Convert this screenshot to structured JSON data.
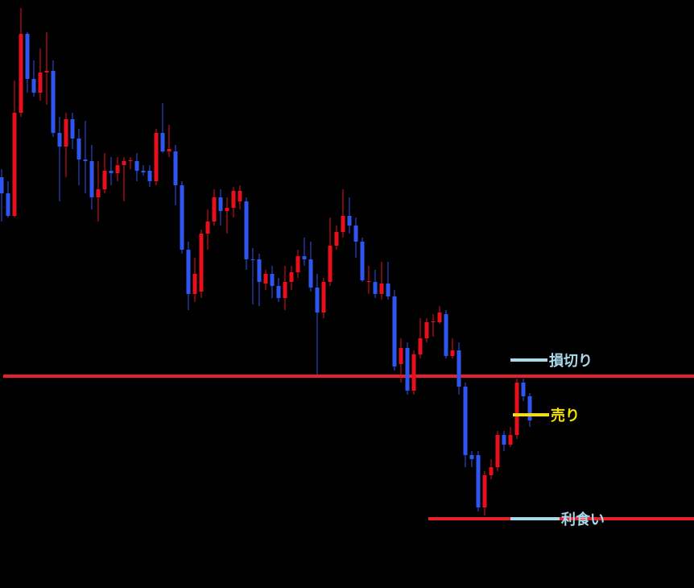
{
  "chart_data": {
    "type": "candlestick",
    "up_color": "#e8101c",
    "down_color": "#2f55f0",
    "ylim": [
      0,
      730
    ],
    "open": [
      510,
      490,
      462,
      590,
      688,
      632,
      615,
      640,
      642,
      565,
      548,
      582,
      558,
      532,
      530,
      485,
      495,
      518,
      515,
      525,
      530,
      530,
      518,
      518,
      505,
      565,
      542,
      542,
      500,
      420,
      365,
      368,
      440,
      455,
      485,
      468,
      472,
      480,
      480,
      408,
      408,
      378,
      390,
      375,
      360,
      380,
      392,
      412,
      408,
      373,
      342,
      380,
      425,
      442,
      462,
      450,
      430,
      380,
      380,
      365,
      378,
      362,
      278,
      298,
      245,
      290,
      310,
      330,
      330,
      340,
      288,
      295,
      250,
      165,
      165,
      100,
      140,
      150,
      190,
      178,
      190,
      255,
      238
    ],
    "high": [
      520,
      505,
      630,
      720,
      690,
      655,
      670,
      690,
      655,
      585,
      590,
      590,
      570,
      580,
      550,
      530,
      540,
      535,
      535,
      535,
      535,
      540,
      525,
      525,
      570,
      602,
      575,
      550,
      505,
      430,
      410,
      445,
      470,
      495,
      495,
      485,
      498,
      500,
      485,
      422,
      415,
      395,
      400,
      385,
      400,
      400,
      420,
      435,
      430,
      390,
      385,
      460,
      450,
      495,
      485,
      460,
      435,
      400,
      395,
      405,
      405,
      370,
      310,
      305,
      295,
      335,
      335,
      340,
      350,
      345,
      310,
      305,
      255,
      170,
      170,
      145,
      160,
      195,
      195,
      200,
      260,
      260,
      242
    ],
    "low": [
      455,
      460,
      460,
      585,
      615,
      610,
      605,
      600,
      560,
      480,
      510,
      545,
      500,
      490,
      470,
      455,
      490,
      500,
      505,
      480,
      520,
      505,
      512,
      498,
      500,
      540,
      535,
      475,
      415,
      345,
      355,
      360,
      420,
      450,
      450,
      440,
      460,
      470,
      395,
      352,
      350,
      370,
      360,
      355,
      345,
      370,
      385,
      400,
      368,
      265,
      335,
      375,
      420,
      435,
      440,
      410,
      380,
      365,
      360,
      358,
      358,
      270,
      255,
      240,
      240,
      285,
      305,
      312,
      328,
      285,
      285,
      240,
      150,
      150,
      95,
      90,
      135,
      145,
      170,
      175,
      185,
      232,
      200
    ],
    "close": [
      490,
      462,
      590,
      688,
      632,
      615,
      640,
      642,
      565,
      548,
      582,
      558,
      532,
      530,
      485,
      495,
      518,
      515,
      525,
      530,
      531,
      518,
      516,
      505,
      565,
      542,
      545,
      500,
      420,
      365,
      390,
      440,
      455,
      485,
      468,
      472,
      493,
      493,
      408,
      407,
      380,
      390,
      375,
      360,
      380,
      392,
      412,
      408,
      373,
      342,
      380,
      425,
      442,
      462,
      450,
      430,
      382,
      381,
      365,
      378,
      362,
      275,
      298,
      245,
      290,
      310,
      330,
      331,
      342,
      288,
      295,
      250,
      165,
      160,
      100,
      140,
      150,
      190,
      178,
      190,
      255,
      238,
      208
    ],
    "levels": [
      {
        "value": 263,
        "color": "#e8202a"
      },
      {
        "value": 86,
        "color": "#e8202a"
      }
    ],
    "annotations": [
      {
        "label": "損切り",
        "value": 283,
        "color": "#a8d8ea"
      },
      {
        "label": "売り",
        "value": 215,
        "color": "#f5e100"
      },
      {
        "label": "利食い",
        "value": 86,
        "color": "#a8d8ea"
      }
    ]
  }
}
